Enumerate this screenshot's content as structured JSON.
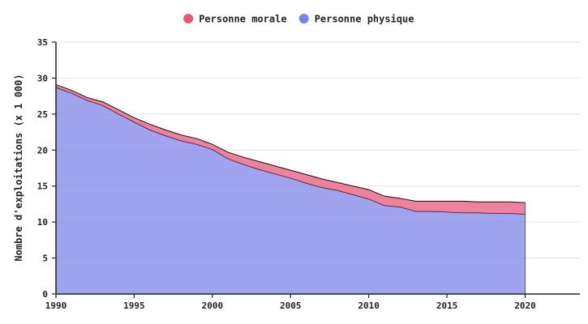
{
  "chart_data": {
    "type": "area",
    "stacked": true,
    "title": "",
    "xlabel": "",
    "ylabel": "Nombre d'exploitations (x 1 000)",
    "x": [
      1990,
      1991,
      1992,
      1993,
      1994,
      1995,
      1996,
      1997,
      1998,
      1999,
      2000,
      2001,
      2002,
      2003,
      2004,
      2005,
      2006,
      2007,
      2008,
      2009,
      2010,
      2011,
      2012,
      2013,
      2014,
      2015,
      2016,
      2017,
      2018,
      2019,
      2020
    ],
    "xlim": [
      1990,
      2023.5
    ],
    "ylim": [
      0,
      35
    ],
    "xticks": [
      1990,
      1995,
      2000,
      2005,
      2010,
      2015,
      2020
    ],
    "yticks": [
      0,
      5,
      10,
      15,
      20,
      25,
      30,
      35
    ],
    "grid": true,
    "legend_position": "top-center",
    "series": [
      {
        "name": "Personne physique",
        "color": "#7b7fe8",
        "values": [
          28.7,
          27.9,
          26.9,
          26.2,
          25.0,
          23.9,
          22.8,
          22.0,
          21.3,
          20.8,
          20.1,
          18.8,
          18.0,
          17.3,
          16.7,
          16.1,
          15.4,
          14.8,
          14.4,
          13.8,
          13.2,
          12.3,
          12.1,
          11.5,
          11.5,
          11.4,
          11.3,
          11.3,
          11.2,
          11.2,
          11.1
        ]
      },
      {
        "name": "Personne morale",
        "color": "#e8577a",
        "values": [
          0.4,
          0.4,
          0.4,
          0.5,
          0.6,
          0.6,
          0.8,
          0.8,
          0.8,
          0.8,
          0.7,
          0.9,
          1.0,
          1.1,
          1.1,
          1.1,
          1.2,
          1.2,
          1.1,
          1.2,
          1.3,
          1.3,
          1.2,
          1.4,
          1.4,
          1.5,
          1.6,
          1.5,
          1.6,
          1.6,
          1.6
        ]
      }
    ],
    "legend_order": [
      "Personne morale",
      "Personne physique"
    ]
  }
}
